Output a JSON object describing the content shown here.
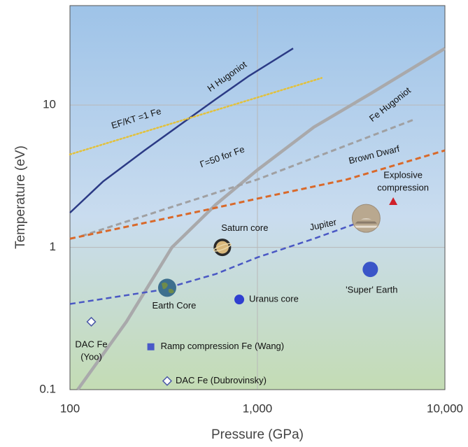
{
  "chart_data": {
    "type": "line",
    "x_label": "Pressure (GPa)",
    "y_label": "Temperature (eV)",
    "xscale": "log",
    "yscale": "log",
    "xlim": [
      100,
      10000
    ],
    "ylim": [
      0.1,
      50
    ],
    "xticks": [
      100,
      {
        "value": 1000,
        "label": "1,000"
      },
      {
        "value": 10000,
        "label": "10,000"
      }
    ],
    "yticks": [
      0.1,
      1,
      10
    ],
    "grid": true,
    "series": [
      {
        "name": "H Hugoniot",
        "color": "#2b3a85",
        "style": "solid",
        "width": 2.5,
        "x": [
          100,
          150,
          250,
          400,
          600,
          900,
          1550
        ],
        "values": [
          1.75,
          2.9,
          4.8,
          7.5,
          11,
          16,
          25
        ]
      },
      {
        "name": "EF/KT =1 Fe",
        "color": "#e3c13a",
        "style": "dotted",
        "width": 2.5,
        "x": [
          100,
          2200
        ],
        "values": [
          4.5,
          15.5
        ]
      },
      {
        "name": "Fe Hugoniot",
        "color": "#a9a9ab",
        "style": "solid",
        "width": 4.5,
        "x": [
          110,
          200,
          350,
          600,
          1000,
          2000,
          4000,
          10000
        ],
        "values": [
          0.1,
          0.3,
          1.0,
          2.0,
          3.5,
          7,
          12,
          25
        ]
      },
      {
        "name": "Γ=50 for Fe",
        "color": "#a0a0a2",
        "style": "dashed",
        "width": 3,
        "x": [
          115,
          1000,
          7000
        ],
        "values": [
          1.2,
          3.0,
          8
        ]
      },
      {
        "name": "Brown Dwarf",
        "color": "#d9692a",
        "style": "dashed",
        "width": 3,
        "x": [
          100,
          500,
          1000,
          3000,
          10000
        ],
        "values": [
          1.15,
          1.8,
          2.2,
          3.0,
          4.8
        ]
      },
      {
        "name": "Jupiter",
        "color": "#4a58c4",
        "style": "dashed",
        "width": 2.5,
        "x": [
          100,
          300,
          600,
          1000,
          2000,
          3500
        ],
        "values": [
          0.4,
          0.5,
          0.65,
          0.85,
          1.15,
          1.5
        ]
      }
    ],
    "points": [
      {
        "label": [
          "Saturn core"
        ],
        "x": 650,
        "y": 1.0,
        "marker": "saturn",
        "color": "#2a2a2a"
      },
      {
        "label": [
          "Uranus core"
        ],
        "x": 800,
        "y": 0.43,
        "marker": "circle",
        "color": "#2f3fd0"
      },
      {
        "label": [
          "Earth Core"
        ],
        "x": 330,
        "y": 0.52,
        "marker": "earth",
        "color": "#3d6f8e"
      },
      {
        "x": 3800,
        "y": 1.6,
        "marker": "jupiter",
        "color": "#b9a88f"
      },
      {
        "label": [
          "'Super' Earth"
        ],
        "x": 4000,
        "y": 0.7,
        "marker": "circle",
        "color": "#3a55c8"
      },
      {
        "label": [
          "Explosive",
          "compression"
        ],
        "x": 5300,
        "y": 2.1,
        "marker": "triangle",
        "color": "#d0202a"
      },
      {
        "label": [
          "DAC Fe",
          "(Yoo)"
        ],
        "x": 130,
        "y": 0.3,
        "marker": "diamond",
        "color": "#4a58a8"
      },
      {
        "label": [
          "Ramp compression Fe (Wang)"
        ],
        "x": 270,
        "y": 0.2,
        "marker": "square",
        "color": "#4a5ac8"
      },
      {
        "label": [
          "DAC Fe (Dubrovinsky)"
        ],
        "x": 330,
        "y": 0.115,
        "marker": "diamond",
        "color": "#4a58a8"
      }
    ]
  }
}
